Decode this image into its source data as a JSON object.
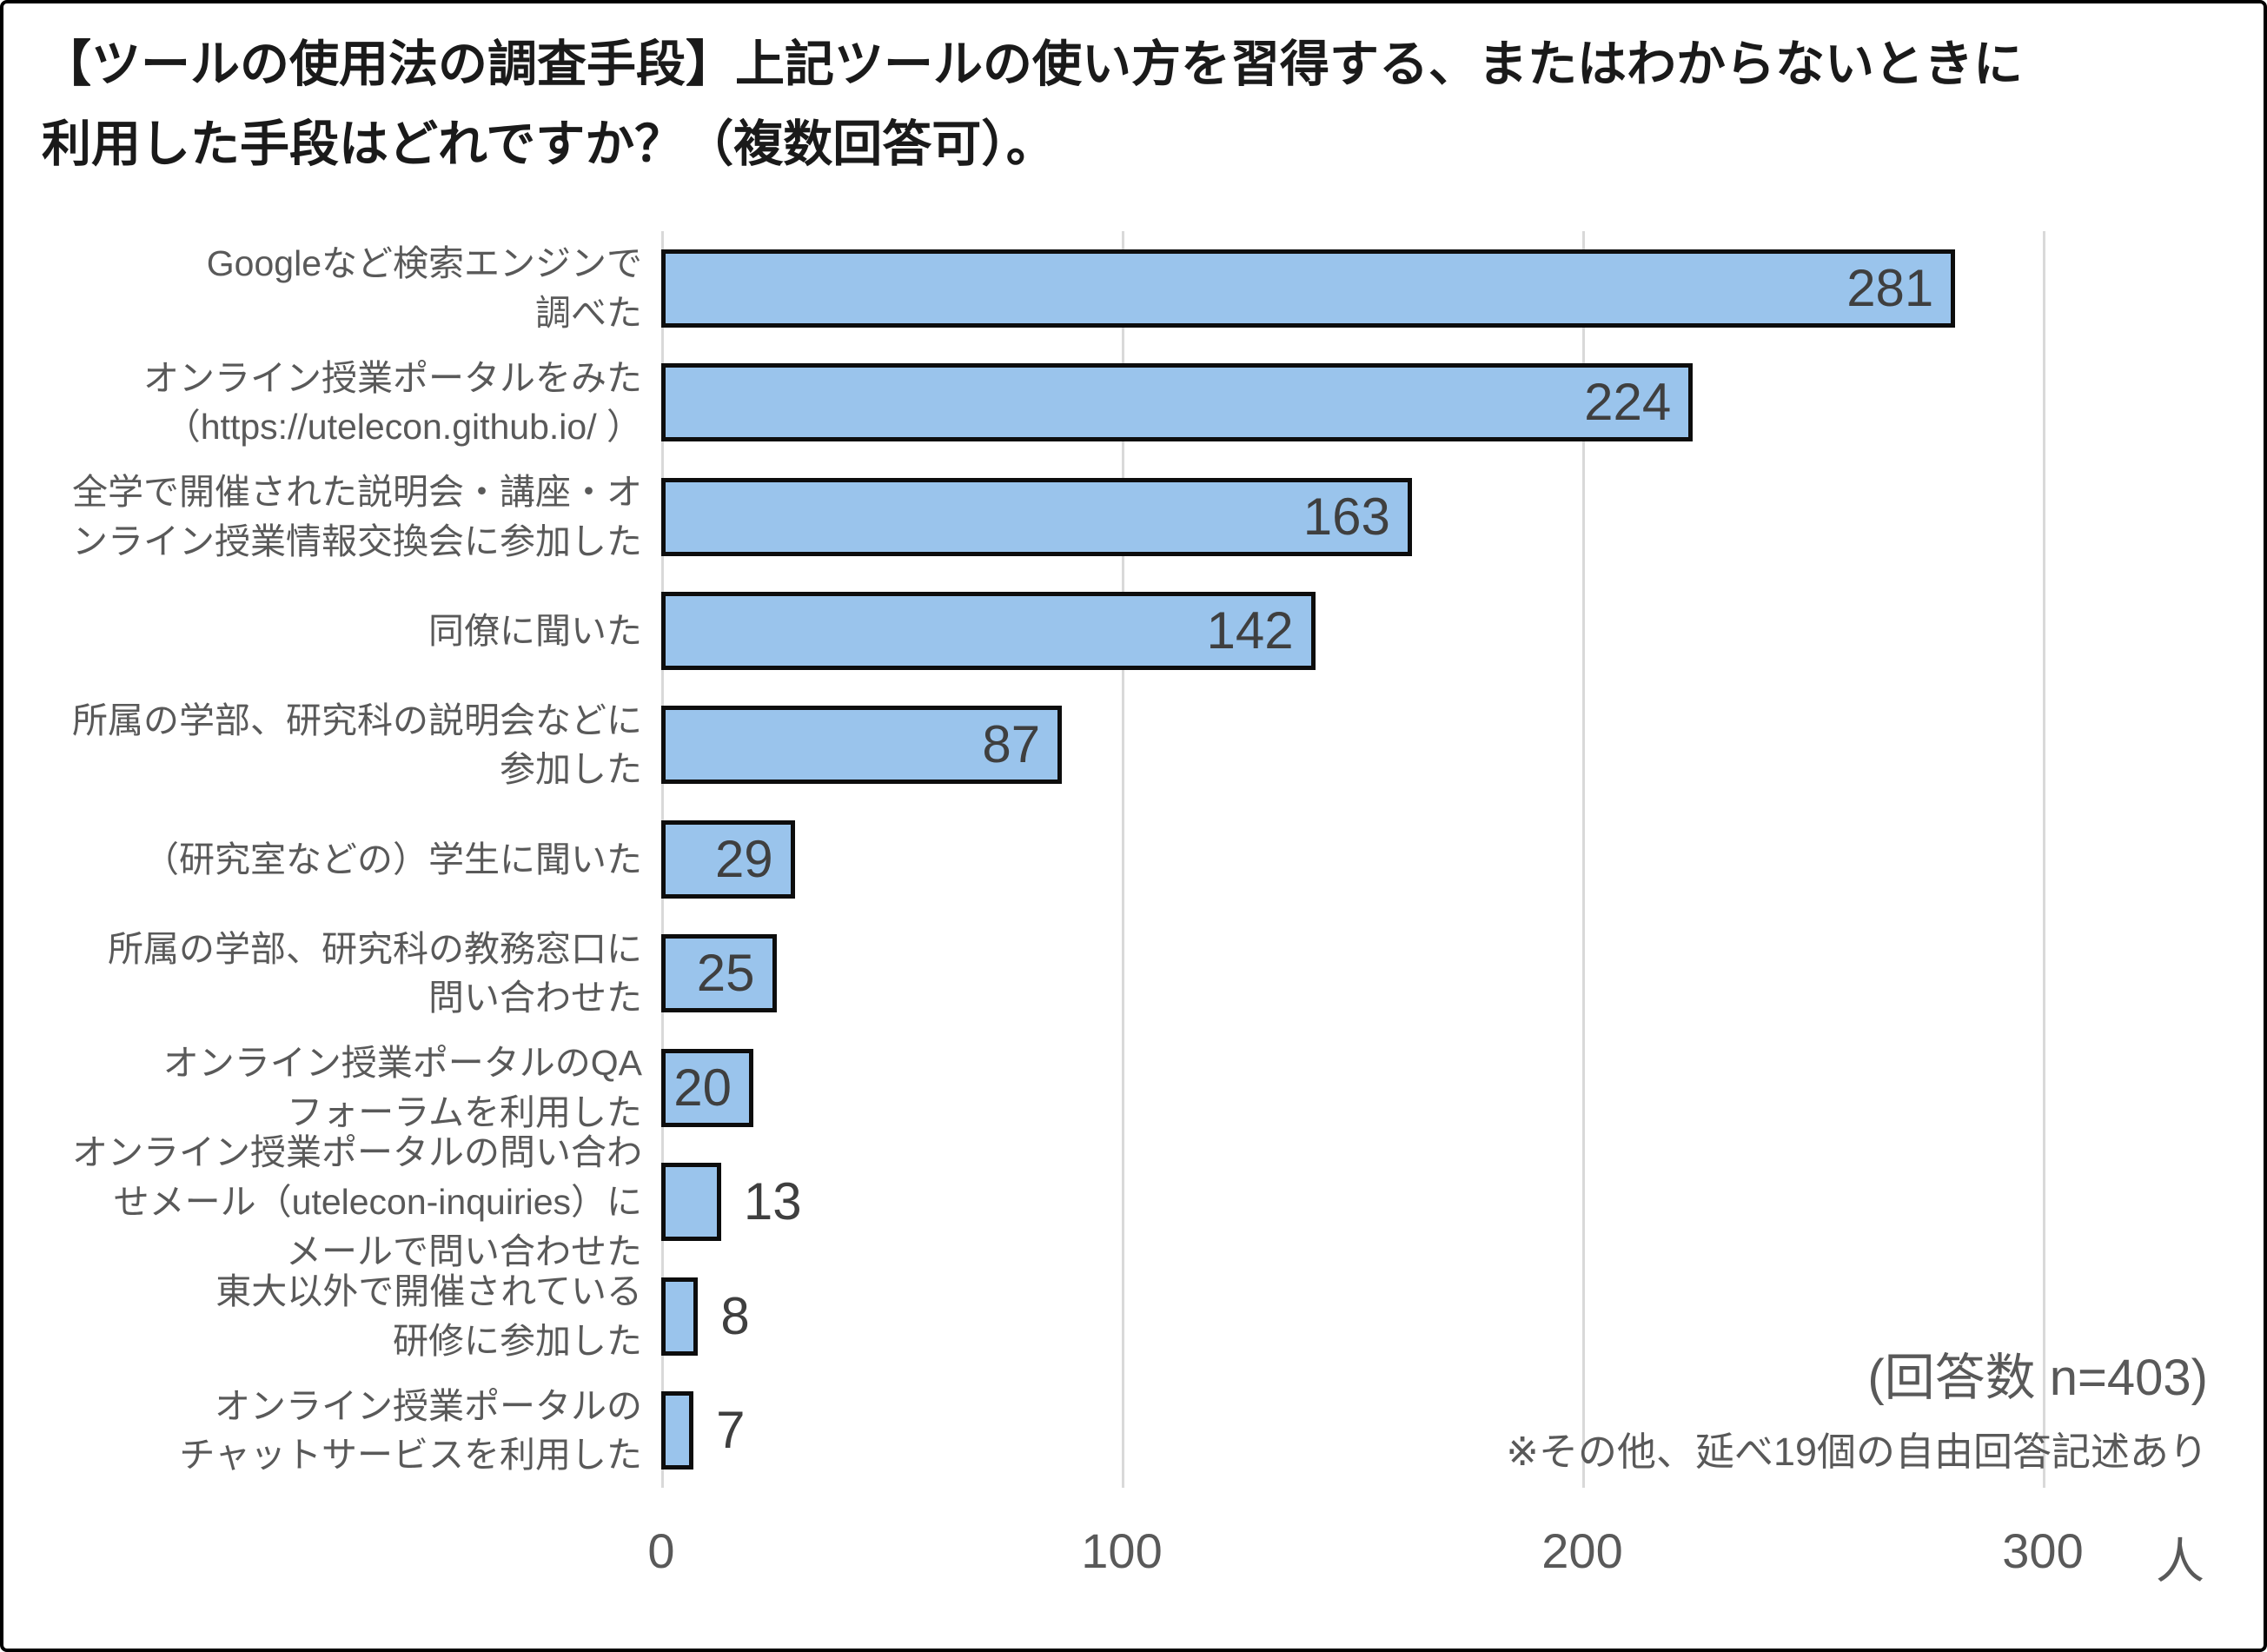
{
  "chart_data": {
    "type": "bar",
    "orientation": "horizontal",
    "title": "【ツールの使用法の調査手段】上記ツールの使い方を習得する、またはわからないときに利用した手段はどれですか？（複数回答可）。",
    "title_lines": [
      "【ツールの使用法の調査手段】上記ツールの使い方を習得する、またはわからないときに",
      "利用した手段はどれですか？（複数回答可）。"
    ],
    "categories": [
      "Googleなど検索エンジンで\n調べた",
      "オンライン授業ポータルをみた\n（https://utelecon.github.io/ ）",
      "全学で開催された説明会・講座・オ\nンライン授業情報交換会に参加した",
      "同僚に聞いた",
      "所属の学部、研究科の説明会などに\n参加した",
      "（研究室などの）学生に聞いた",
      "所属の学部、研究科の教務窓口に\n問い合わせた",
      "オンライン授業ポータルのQA\nフォーラムを利用した",
      "オンライン授業ポータルの問い合わ\nせメール（utelecon-inquiries）に\nメールで問い合わせた",
      "東大以外で開催されている\n研修に参加した",
      "オンライン授業ポータルの\nチャットサービスを利用した"
    ],
    "values": [
      281,
      224,
      163,
      142,
      87,
      29,
      25,
      20,
      13,
      8,
      7
    ],
    "xlabel": "",
    "ylabel": "",
    "x_unit": "人",
    "xticks": [
      "0",
      "100",
      "200",
      "300"
    ],
    "xlim": [
      0,
      340
    ],
    "grid": "vertical gridlines at ticks, light gray",
    "legend": "none",
    "annotations": {
      "sample_size": "(回答数 n=403)",
      "note": "※その他、延べ19個の自由回答記述あり"
    },
    "colors": {
      "bar_fill": "#9AC4EC",
      "bar_border": "#0D0D0D",
      "gridline": "#D9D9D9",
      "category_text": "#595959",
      "value_text": "#3F3F3F",
      "title_text": "#1A1A1A",
      "frame_border": "#000000"
    }
  }
}
